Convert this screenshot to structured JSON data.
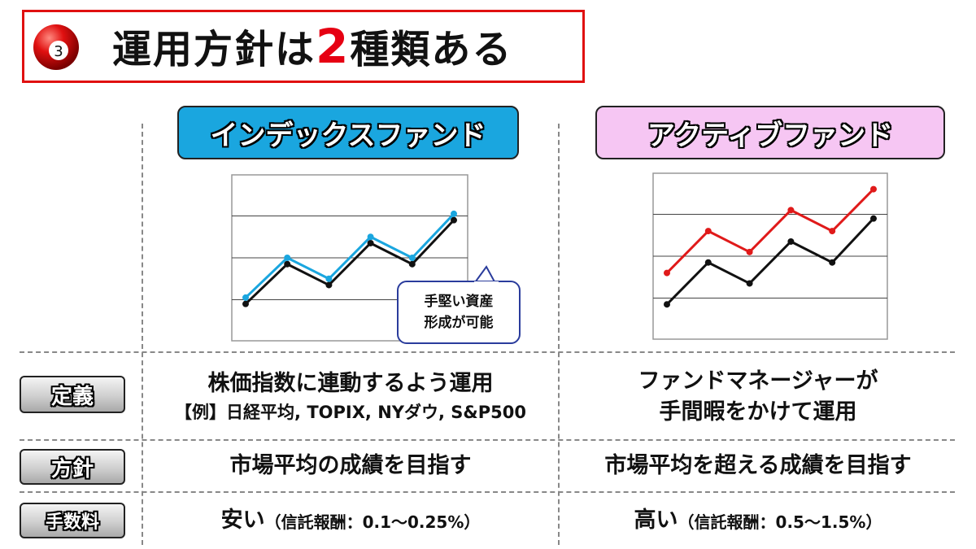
{
  "title": {
    "number": "3",
    "prefix": "運用方針は",
    "highlight": "2",
    "suffix": "種類ある",
    "accent_color": "#e60012"
  },
  "funds": {
    "index": {
      "name": "インデックスファンド",
      "color": "#1aa6df",
      "callout_line1": "手堅い資産",
      "callout_line2": "形成が可能"
    },
    "active": {
      "name": "アクティブファンド",
      "color": "#f6c6f3"
    }
  },
  "rows": {
    "definition": {
      "label": "定義",
      "index_line1": "株価指数に連動するよう運用",
      "index_line2": "【例】日経平均, TOPIX, NYダウ, S&P500",
      "active_line1": "ファンドマネージャーが",
      "active_line2": "手間暇をかけて運用"
    },
    "policy": {
      "label": "方針",
      "index": "市場平均の成績を目指す",
      "active": "市場平均を超える成績を目指す"
    },
    "fee": {
      "label": "手数料",
      "index_main": "安い",
      "index_detail": "（信託報酬：0.1～0.25%）",
      "active_main": "高い",
      "active_detail": "（信託報酬：0.5～1.5%）"
    }
  },
  "chart_data": [
    {
      "type": "line",
      "x": [
        1,
        2,
        3,
        4,
        5,
        6
      ],
      "ylim": [
        0,
        4
      ],
      "series": [
        {
          "values": [
            0.9,
            1.85,
            1.35,
            2.35,
            1.85,
            2.9
          ],
          "color": "#111111"
        },
        {
          "values": [
            1.05,
            2.0,
            1.5,
            2.5,
            2.0,
            3.05
          ],
          "color": "#1aa6df"
        }
      ]
    },
    {
      "type": "line",
      "x": [
        1,
        2,
        3,
        4,
        5,
        6
      ],
      "ylim": [
        0,
        4
      ],
      "series": [
        {
          "values": [
            0.85,
            1.85,
            1.35,
            2.35,
            1.85,
            2.9
          ],
          "color": "#111111"
        },
        {
          "values": [
            1.6,
            2.6,
            2.1,
            3.1,
            2.6,
            3.6
          ],
          "color": "#e01a1a"
        }
      ]
    }
  ]
}
